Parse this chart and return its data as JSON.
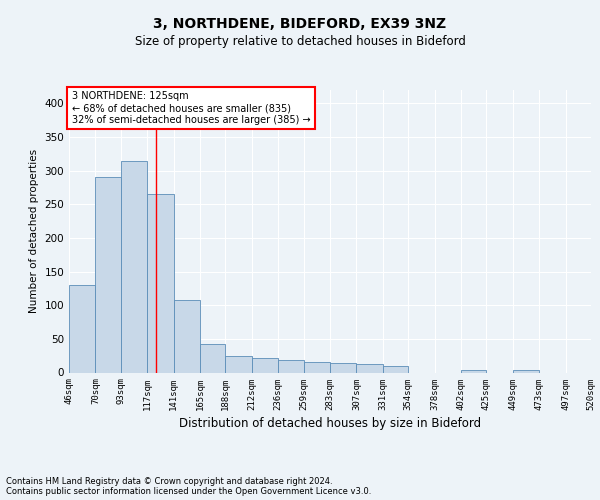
{
  "title1": "3, NORTHDENE, BIDEFORD, EX39 3NZ",
  "title2": "Size of property relative to detached houses in Bideford",
  "xlabel": "Distribution of detached houses by size in Bideford",
  "ylabel": "Number of detached properties",
  "footnote1": "Contains HM Land Registry data © Crown copyright and database right 2024.",
  "footnote2": "Contains public sector information licensed under the Open Government Licence v3.0.",
  "annotation_line1": "3 NORTHDENE: 125sqm",
  "annotation_line2": "← 68% of detached houses are smaller (835)",
  "annotation_line3": "32% of semi-detached houses are larger (385) →",
  "bar_color": "#c8d8e8",
  "bar_edge_color": "#5b8db8",
  "red_line_x": 125,
  "bin_labels": [
    "46sqm",
    "70sqm",
    "93sqm",
    "117sqm",
    "141sqm",
    "165sqm",
    "188sqm",
    "212sqm",
    "236sqm",
    "259sqm",
    "283sqm",
    "307sqm",
    "331sqm",
    "354sqm",
    "378sqm",
    "402sqm",
    "425sqm",
    "449sqm",
    "473sqm",
    "497sqm",
    "520sqm"
  ],
  "bin_edges": [
    46,
    70,
    93,
    117,
    141,
    165,
    188,
    212,
    236,
    259,
    283,
    307,
    331,
    354,
    378,
    402,
    425,
    449,
    473,
    497,
    520
  ],
  "bar_heights": [
    130,
    290,
    315,
    265,
    108,
    42,
    25,
    22,
    18,
    16,
    14,
    13,
    10,
    0,
    0,
    3,
    0,
    3,
    0,
    0,
    0
  ],
  "ylim": [
    0,
    420
  ],
  "yticks": [
    0,
    50,
    100,
    150,
    200,
    250,
    300,
    350,
    400
  ],
  "background_color": "#edf3f8",
  "grid_color": "#ffffff",
  "annotation_box_color": "white",
  "annotation_box_edge": "red"
}
